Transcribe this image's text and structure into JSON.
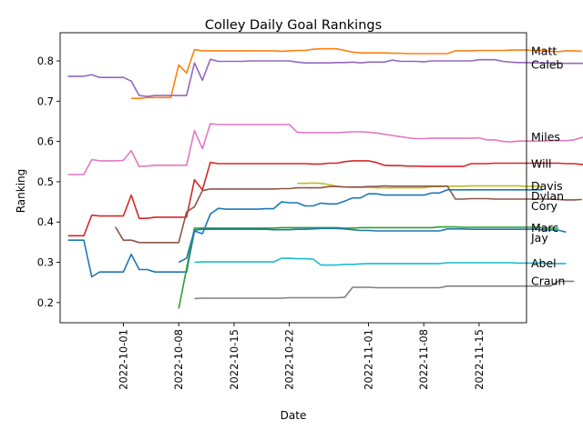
{
  "chart_data": {
    "type": "line",
    "title": "Colley Daily Goal Rankings",
    "xlabel": "Date",
    "ylabel": "Ranking",
    "grid": false,
    "legend": "none",
    "x_start": "2022-09-24",
    "x_end": "2022-11-19",
    "xlim": [
      "2022-09-23",
      "2022-11-21"
    ],
    "ylim": [
      0.15,
      0.87
    ],
    "x_ticks": [
      "2022-10-01",
      "2022-10-08",
      "2022-10-15",
      "2022-10-22",
      "2022-11-01",
      "2022-11-08",
      "2022-11-15"
    ],
    "y_ticks": [
      0.2,
      0.3,
      0.4,
      0.5,
      0.6,
      0.7,
      0.8
    ],
    "series": [
      {
        "name": "Matt",
        "color": "#ff7f0e",
        "start": "2022-10-02",
        "values": [
          0.707,
          0.707,
          0.709,
          0.709,
          0.709,
          0.709,
          0.79,
          0.77,
          0.828,
          0.825,
          0.825,
          0.825,
          0.825,
          0.825,
          0.825,
          0.825,
          0.825,
          0.825,
          0.825,
          0.824,
          0.825,
          0.826,
          0.826,
          0.829,
          0.83,
          0.83,
          0.83,
          0.826,
          0.822,
          0.82,
          0.82,
          0.82,
          0.82,
          0.819,
          0.819,
          0.818,
          0.818,
          0.818,
          0.818,
          0.818,
          0.818,
          0.825,
          0.825,
          0.825,
          0.826,
          0.826,
          0.826,
          0.826,
          0.827,
          0.827,
          0.827,
          0.826,
          0.826,
          0.824,
          0.823,
          0.825,
          0.825,
          0.824
        ]
      },
      {
        "name": "Caleb",
        "color": "#9467bd",
        "start": "2022-09-24",
        "values": [
          0.762,
          0.762,
          0.762,
          0.766,
          0.759,
          0.759,
          0.759,
          0.759,
          0.75,
          0.714,
          0.712,
          0.714,
          0.714,
          0.714,
          0.714,
          0.714,
          0.795,
          0.752,
          0.804,
          0.799,
          0.799,
          0.799,
          0.799,
          0.8,
          0.8,
          0.8,
          0.8,
          0.8,
          0.8,
          0.797,
          0.795,
          0.795,
          0.795,
          0.795,
          0.796,
          0.796,
          0.797,
          0.795,
          0.797,
          0.797,
          0.797,
          0.802,
          0.799,
          0.799,
          0.799,
          0.798,
          0.8,
          0.8,
          0.8,
          0.8,
          0.8,
          0.8,
          0.803,
          0.803,
          0.803,
          0.799,
          0.797,
          0.796,
          0.796,
          0.795,
          0.795,
          0.795,
          0.794,
          0.794,
          0.794,
          0.794,
          0.793,
          0.793,
          0.79,
          0.79
        ]
      },
      {
        "name": "Miles",
        "color": "#e377c2",
        "start": "2022-09-24",
        "values": [
          0.518,
          0.518,
          0.518,
          0.555,
          0.552,
          0.552,
          0.552,
          0.553,
          0.577,
          0.538,
          0.539,
          0.541,
          0.541,
          0.541,
          0.541,
          0.541,
          0.627,
          0.582,
          0.644,
          0.642,
          0.642,
          0.642,
          0.642,
          0.642,
          0.642,
          0.642,
          0.642,
          0.642,
          0.642,
          0.623,
          0.622,
          0.622,
          0.622,
          0.622,
          0.622,
          0.623,
          0.624,
          0.624,
          0.623,
          0.621,
          0.618,
          0.615,
          0.612,
          0.609,
          0.607,
          0.607,
          0.608,
          0.608,
          0.608,
          0.608,
          0.608,
          0.608,
          0.609,
          0.604,
          0.604,
          0.6,
          0.599,
          0.601,
          0.601,
          0.601,
          0.601,
          0.602,
          0.602,
          0.602,
          0.604,
          0.61,
          0.61,
          0.61,
          0.61,
          0.61
        ]
      },
      {
        "name": "Will",
        "color": "#d62728",
        "start": "2022-09-24",
        "values": [
          0.366,
          0.366,
          0.366,
          0.417,
          0.415,
          0.415,
          0.415,
          0.415,
          0.467,
          0.409,
          0.409,
          0.412,
          0.412,
          0.412,
          0.412,
          0.412,
          0.505,
          0.48,
          0.548,
          0.545,
          0.545,
          0.545,
          0.545,
          0.545,
          0.545,
          0.545,
          0.545,
          0.545,
          0.545,
          0.545,
          0.545,
          0.544,
          0.544,
          0.546,
          0.546,
          0.55,
          0.552,
          0.552,
          0.552,
          0.548,
          0.541,
          0.54,
          0.54,
          0.539,
          0.539,
          0.538,
          0.538,
          0.538,
          0.538,
          0.538,
          0.538,
          0.545,
          0.545,
          0.545,
          0.546,
          0.546,
          0.546,
          0.546,
          0.546,
          0.546,
          0.546,
          0.546,
          0.546,
          0.545,
          0.545,
          0.543,
          0.544,
          0.544,
          0.544,
          0.544
        ]
      },
      {
        "name": "Davis",
        "color": "#bcbd22",
        "start": "2022-10-23",
        "values": [
          0.496,
          0.496,
          0.497,
          0.496,
          0.493,
          0.489,
          0.487,
          0.486,
          0.486,
          0.486,
          0.485,
          0.485,
          0.485,
          0.485,
          0.485,
          0.485,
          0.485,
          0.488,
          0.488,
          0.489,
          0.489,
          0.489,
          0.49,
          0.49,
          0.49,
          0.49,
          0.49,
          0.49,
          0.49,
          0.488,
          0.489,
          0.489
        ]
      },
      {
        "name": "Cory",
        "color": "#8c564b",
        "start": "2022-09-30",
        "values": [
          0.388,
          0.355,
          0.355,
          0.349,
          0.349,
          0.349,
          0.349,
          0.349,
          0.349,
          0.425,
          0.438,
          0.478,
          0.482,
          0.482,
          0.482,
          0.482,
          0.482,
          0.482,
          0.482,
          0.482,
          0.482,
          0.483,
          0.483,
          0.485,
          0.485,
          0.485,
          0.485,
          0.488,
          0.488,
          0.487,
          0.487,
          0.487,
          0.488,
          0.488,
          0.49,
          0.489,
          0.489,
          0.489,
          0.489,
          0.489,
          0.489,
          0.489,
          0.489,
          0.457,
          0.457,
          0.458,
          0.458,
          0.458,
          0.457,
          0.457,
          0.457,
          0.457,
          0.457,
          0.457,
          0.457,
          0.457,
          0.456,
          0.455,
          0.455,
          0.456
        ]
      },
      {
        "name": "Dylan",
        "color": "#1f77b4",
        "start": "2022-09-24",
        "values": [
          0.355,
          0.355,
          0.355,
          0.264,
          0.276,
          0.276,
          0.276,
          0.276,
          0.32,
          0.282,
          0.282,
          0.276,
          0.276,
          0.276,
          0.276,
          0.276,
          0.378,
          0.371,
          0.42,
          0.434,
          0.432,
          0.432,
          0.432,
          0.432,
          0.432,
          0.433,
          0.433,
          0.45,
          0.448,
          0.448,
          0.44,
          0.44,
          0.447,
          0.445,
          0.445,
          0.452,
          0.46,
          0.46,
          0.47,
          0.47,
          0.467,
          0.467,
          0.467,
          0.467,
          0.467,
          0.467,
          0.472,
          0.472,
          0.48,
          0.48,
          0.48,
          0.48,
          0.48,
          0.48,
          0.48,
          0.48,
          0.48,
          0.48,
          0.48,
          0.48,
          0.48
        ]
      },
      {
        "name": "Marc",
        "color": "#2ca02c",
        "start": "2022-10-08",
        "values": [
          0.185,
          0.284,
          0.385,
          0.385,
          0.385,
          0.385,
          0.385,
          0.385,
          0.385,
          0.385,
          0.385,
          0.385,
          0.385,
          0.386,
          0.386,
          0.386,
          0.386,
          0.386,
          0.386,
          0.386,
          0.386,
          0.385,
          0.385,
          0.386,
          0.386,
          0.386,
          0.386,
          0.386,
          0.386,
          0.386,
          0.386,
          0.386,
          0.386,
          0.388,
          0.388,
          0.388,
          0.387,
          0.387,
          0.387,
          0.387,
          0.387,
          0.387,
          0.387,
          0.387,
          0.387,
          0.387,
          0.386,
          0.385,
          0.385
        ]
      },
      {
        "name": "Jay",
        "color": "#1f77b4",
        "start": "2022-10-08",
        "values": [
          0.3,
          0.31,
          0.38,
          0.382,
          0.382,
          0.382,
          0.382,
          0.382,
          0.382,
          0.382,
          0.382,
          0.382,
          0.381,
          0.381,
          0.381,
          0.382,
          0.382,
          0.383,
          0.384,
          0.384,
          0.384,
          0.383,
          0.381,
          0.379,
          0.379,
          0.378,
          0.378,
          0.378,
          0.378,
          0.378,
          0.378,
          0.378,
          0.378,
          0.378,
          0.383,
          0.383,
          0.383,
          0.382,
          0.382,
          0.382,
          0.382,
          0.382,
          0.382,
          0.382,
          0.382,
          0.382,
          0.381,
          0.38,
          0.38,
          0.375
        ]
      },
      {
        "name": "Abel",
        "color": "#17becf",
        "start": "2022-10-10",
        "values": [
          0.3,
          0.301,
          0.301,
          0.301,
          0.301,
          0.301,
          0.301,
          0.301,
          0.301,
          0.301,
          0.301,
          0.31,
          0.31,
          0.309,
          0.309,
          0.308,
          0.293,
          0.293,
          0.293,
          0.295,
          0.295,
          0.296,
          0.297,
          0.297,
          0.297,
          0.297,
          0.297,
          0.297,
          0.297,
          0.297,
          0.297,
          0.297,
          0.299,
          0.299,
          0.299,
          0.299,
          0.299,
          0.299,
          0.299,
          0.299,
          0.299,
          0.298,
          0.298,
          0.298,
          0.298,
          0.297,
          0.297,
          0.297
        ]
      },
      {
        "name": "Craun",
        "color": "#7f7f7f",
        "start": "2022-10-10",
        "values": [
          0.21,
          0.211,
          0.211,
          0.211,
          0.211,
          0.211,
          0.211,
          0.211,
          0.211,
          0.211,
          0.211,
          0.211,
          0.212,
          0.212,
          0.212,
          0.212,
          0.212,
          0.212,
          0.212,
          0.213,
          0.238,
          0.238,
          0.238,
          0.237,
          0.237,
          0.237,
          0.237,
          0.237,
          0.237,
          0.237,
          0.237,
          0.237,
          0.241,
          0.241,
          0.241,
          0.241,
          0.241,
          0.241,
          0.241,
          0.241,
          0.241,
          0.241,
          0.241,
          0.241,
          0.241,
          0.241,
          0.253,
          0.253,
          0.253
        ]
      }
    ]
  }
}
